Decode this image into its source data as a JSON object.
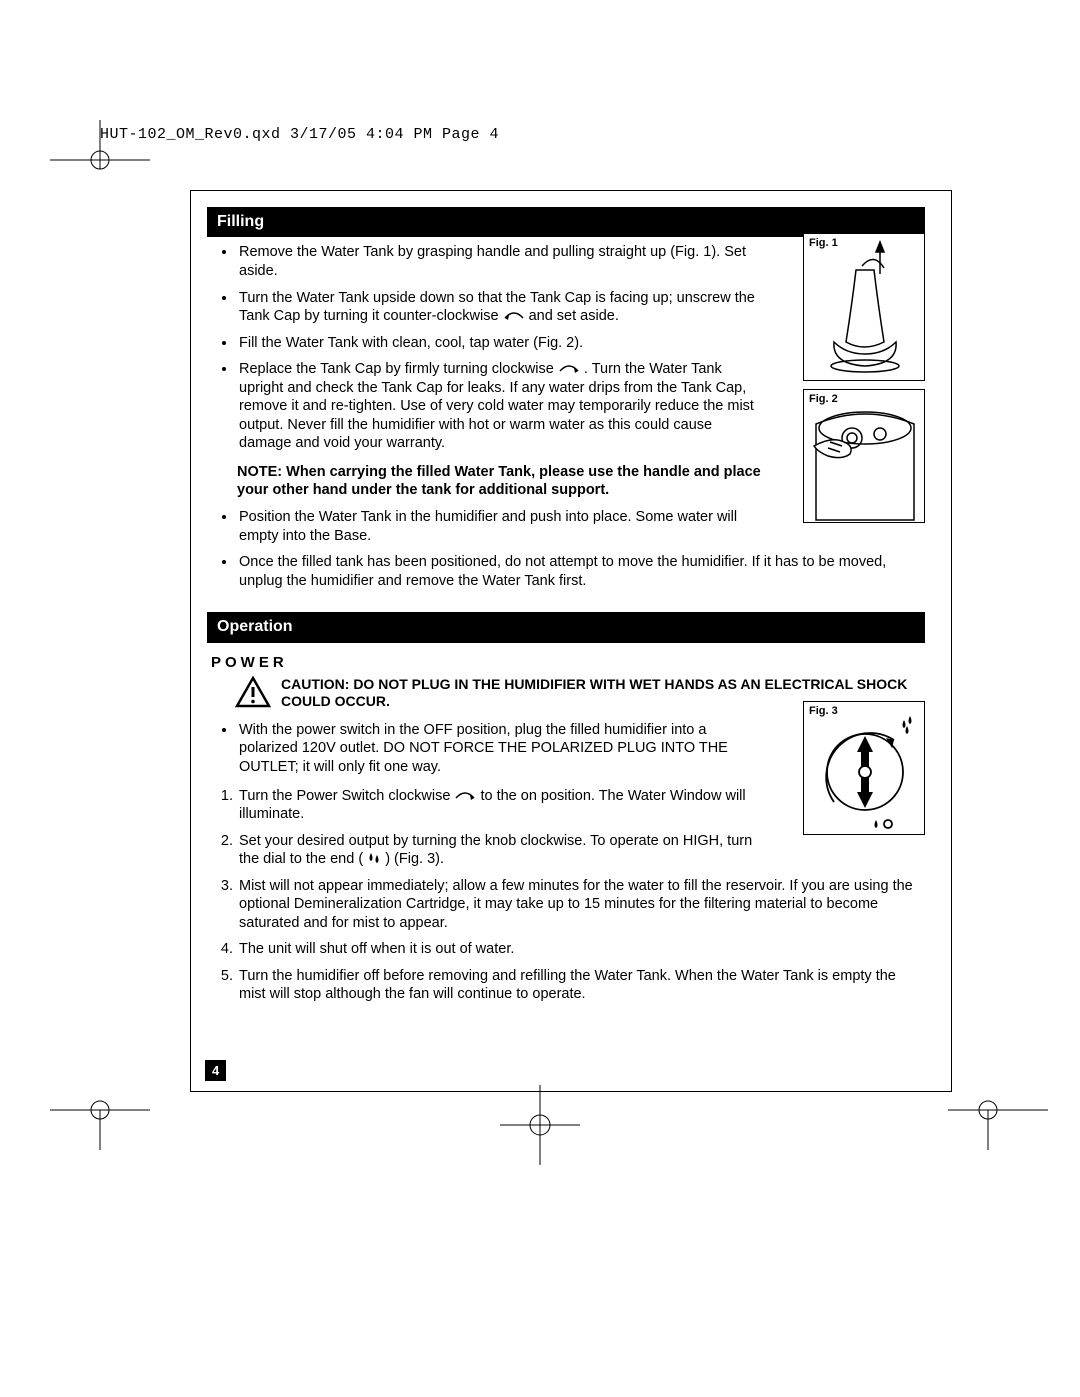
{
  "header": "HUT-102_OM_Rev0.qxd  3/17/05  4:04 PM  Page 4",
  "page_number": "4",
  "sections": {
    "filling": {
      "title": "Filling",
      "items": [
        "Remove the Water Tank by grasping handle and pulling straight up (Fig. 1). Set aside.",
        "Turn the Water Tank upside down so that the Tank Cap is facing up; unscrew the Tank Cap by turning it counter-clockwise {CCW} and set aside.",
        "Fill the Water Tank with clean, cool, tap water (Fig. 2).",
        "Replace the Tank Cap by firmly turning clockwise {CW} .  Turn the Water Tank upright and check the Tank Cap for leaks.  If any water drips from the Tank Cap, remove it and re-tighten.  Use of very cold water may temporarily reduce the mist output.  Never fill the humidifier with hot or warm water as this could cause damage and void your warranty."
      ],
      "note": "NOTE: When carrying the filled Water Tank, please use the handle and place your other hand under the tank for additional support.",
      "items2": [
        "Position the Water Tank in the humidifier and push into place.  Some water will empty into the Base.",
        "Once the filled tank has been positioned, do not attempt to move the humidifier.  If it has to be moved, unplug the humidifier and remove the Water Tank first."
      ]
    },
    "operation": {
      "title": "Operation",
      "power_heading": "POWER",
      "caution": "CAUTION: DO NOT PLUG IN THE HUMIDIFIER WITH WET HANDS AS AN ELECTRICAL SHOCK COULD OCCUR.",
      "intro": "With the power switch in the OFF position, plug the filled humidifier into a polarized 120V outlet.  DO NOT FORCE THE POLARIZED PLUG INTO THE OUTLET; it will only fit one way.",
      "steps": [
        "Turn the Power Switch clockwise {CW} to the on position.  The Water Window will illuminate.",
        "Set your desired output by turning the knob clockwise.  To operate on HIGH, turn the dial to the end ( {DROPS} ) (Fig. 3).",
        "Mist will not appear immediately; allow a few minutes for the water to fill the reservoir.  If you are using the optional Demineralization Cartridge, it may take up to 15 minutes for the filtering material to become saturated and for mist to appear.",
        "The unit will shut off when it is out of water.",
        "Turn the humidifier off before removing and refilling the Water Tank.  When the Water Tank is empty the mist will stop although the fan will continue to operate."
      ]
    }
  },
  "figures": {
    "f1": "Fig. 1",
    "f2": "Fig. 2",
    "f3": "Fig. 3"
  },
  "colors": {
    "text": "#000000",
    "bar_bg": "#000000",
    "bar_fg": "#ffffff",
    "page_bg": "#ffffff",
    "border": "#000000"
  }
}
